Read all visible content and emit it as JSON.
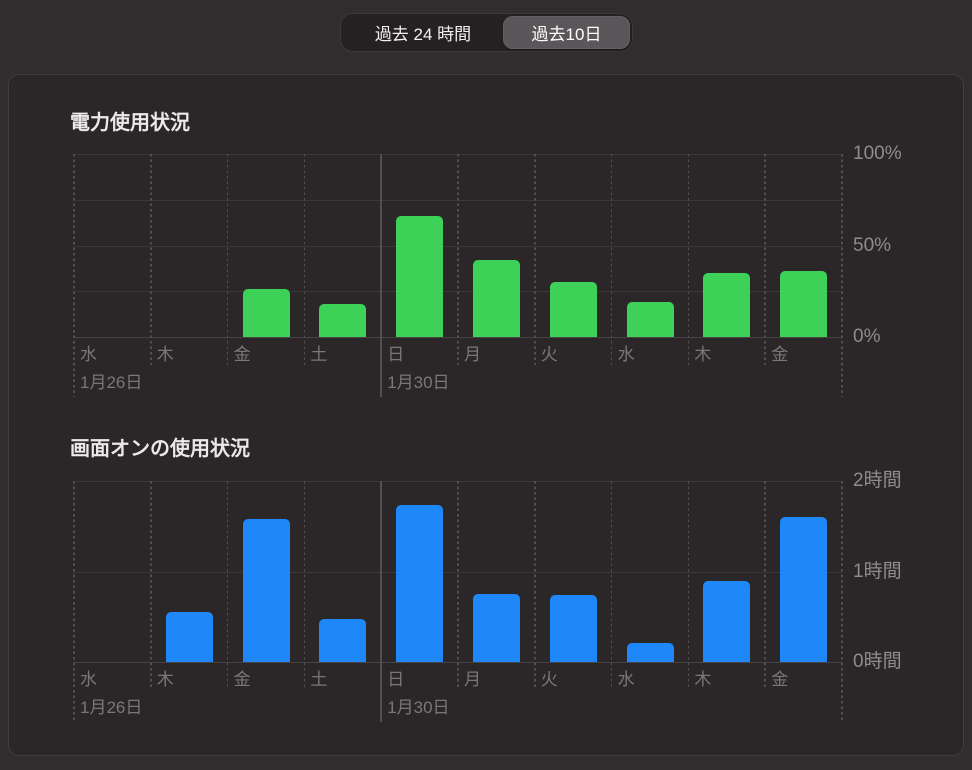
{
  "segmented_control": {
    "options": [
      {
        "label": "過去 24 時間",
        "selected": false
      },
      {
        "label": "過去10日",
        "selected": true
      }
    ]
  },
  "colors": {
    "power_bar_green": "#3ed158",
    "screen_bar_blue": "#1f88f8",
    "selected_segment": "#5a5659"
  },
  "chart_data": [
    {
      "type": "bar",
      "title": "電力使用状況",
      "categories": [
        "水",
        "木",
        "金",
        "土",
        "日",
        "月",
        "火",
        "水",
        "木",
        "金"
      ],
      "values": [
        0,
        0,
        26,
        18,
        66,
        42,
        30,
        19,
        35,
        36
      ],
      "unit": "%",
      "ylim": [
        0,
        100
      ],
      "yticks": [
        {
          "value": 100,
          "label": "100%"
        },
        {
          "value": 50,
          "label": "50%"
        },
        {
          "value": 0,
          "label": "0%"
        }
      ],
      "gridline_values": [
        0,
        25,
        50,
        75,
        100
      ],
      "bar_color": "#3ed158",
      "legend": "none",
      "grid": "on",
      "date_markers": [
        {
          "index": 0,
          "label": "1月26日",
          "major": false
        },
        {
          "index": 4,
          "label": "1月30日",
          "major": true
        }
      ]
    },
    {
      "type": "bar",
      "title": "画面オンの使用状況",
      "categories": [
        "水",
        "木",
        "金",
        "土",
        "日",
        "月",
        "火",
        "水",
        "木",
        "金"
      ],
      "values": [
        0,
        0.55,
        1.58,
        0.47,
        1.73,
        0.75,
        0.74,
        0.21,
        0.9,
        1.6
      ],
      "unit": "時間",
      "ylim": [
        0,
        2
      ],
      "yticks": [
        {
          "value": 2,
          "label": "2時間"
        },
        {
          "value": 1,
          "label": "1時間"
        },
        {
          "value": 0,
          "label": "0時間"
        }
      ],
      "gridline_values": [
        0,
        1,
        2
      ],
      "bar_color": "#1f88f8",
      "legend": "none",
      "grid": "on",
      "date_markers": [
        {
          "index": 0,
          "label": "1月26日",
          "major": false
        },
        {
          "index": 4,
          "label": "1月30日",
          "major": true
        }
      ]
    }
  ]
}
